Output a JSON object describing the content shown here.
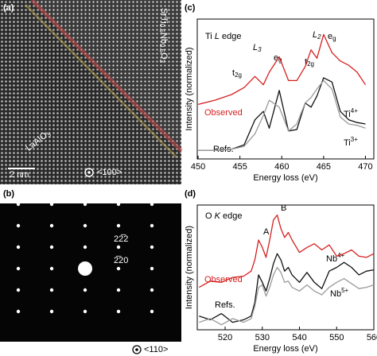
{
  "panels": {
    "a": {
      "label": "(a)",
      "film": {
        "p1": "SrTi",
        "s1": "0.5",
        "p2": "Nb",
        "s2": "0.5",
        "p3": "O",
        "s3": "3"
      },
      "substrate": {
        "p1": "LaAlO",
        "s1": "3"
      },
      "scale_bar": "2 nm",
      "zone_axis": "<100>"
    },
    "b": {
      "label": "(b)",
      "spot_1": "22̅2",
      "spot_2": "2̅20",
      "zone_axis": "<110>"
    }
  },
  "chart_data": [
    {
      "type": "line",
      "label": "(c)",
      "xlabel": "Energy loss (eV)",
      "ylabel": "Intensity (normalized)",
      "xlim": [
        449.9,
        471
      ],
      "xticks": [
        450,
        455,
        460,
        465,
        470
      ],
      "ylim": [
        0,
        1
      ],
      "x": [
        450,
        452,
        454,
        455.5,
        456.8,
        457.8,
        458.5,
        459.7,
        460.8,
        461.8,
        462.8,
        463.5,
        464.2,
        465,
        466,
        467,
        468,
        469,
        470
      ],
      "series": [
        {
          "color": "#d62020",
          "values": [
            0.39,
            0.42,
            0.46,
            0.51,
            0.59,
            0.53,
            0.62,
            0.73,
            0.56,
            0.56,
            0.66,
            0.78,
            0.72,
            0.89,
            0.76,
            0.7,
            0.67,
            0.62,
            0.53
          ]
        },
        {
          "color": "#111111",
          "values": [
            0.06,
            0.06,
            0.07,
            0.1,
            0.28,
            0.34,
            0.22,
            0.49,
            0.2,
            0.21,
            0.4,
            0.37,
            0.45,
            0.58,
            0.55,
            0.34,
            0.28,
            0.26,
            0.25
          ]
        },
        {
          "color": "#9a9a9a",
          "values": [
            0.06,
            0.06,
            0.07,
            0.09,
            0.18,
            0.31,
            0.42,
            0.37,
            0.2,
            0.25,
            0.4,
            0.44,
            0.5,
            0.56,
            0.5,
            0.3,
            0.25,
            0.24,
            0.22
          ]
        }
      ],
      "annotations": {
        "edge": {
          "p1": "Ti ",
          "p2": "L",
          "p3": " edge"
        },
        "t2g_1": {
          "p1": "t",
          "s1": "2g"
        },
        "l3": {
          "p1": "L",
          "s1": "3"
        },
        "eg_1": {
          "p1": "e",
          "s1": "g"
        },
        "t2g_2": {
          "p1": "t",
          "s1": "2g"
        },
        "l2": {
          "p1": "L",
          "s1": "2"
        },
        "eg_2": {
          "p1": "e",
          "s1": "g"
        },
        "observed": "Observed",
        "refs": "Refs.",
        "ti4": {
          "p1": "Ti",
          "s1": "4+"
        },
        "ti3": {
          "p1": "Ti",
          "s1": "3+"
        }
      }
    },
    {
      "type": "line",
      "label": "(d)",
      "xlabel": "Energy loss (eV)",
      "ylabel": "Intensity (normalized)",
      "xlim": [
        512.5,
        560
      ],
      "xticks": [
        520,
        530,
        540,
        550,
        560
      ],
      "ylim": [
        0,
        1
      ],
      "x": [
        513,
        516,
        519,
        522,
        525,
        527,
        528,
        529,
        530,
        531,
        532,
        533,
        534,
        535,
        536,
        537,
        538,
        540,
        542,
        544,
        546,
        548,
        550,
        552,
        554,
        556,
        558,
        560
      ],
      "series": [
        {
          "color": "#d62020",
          "values": [
            0.34,
            0.39,
            0.38,
            0.42,
            0.43,
            0.47,
            0.56,
            0.72,
            0.66,
            0.58,
            0.72,
            0.88,
            0.92,
            0.81,
            0.74,
            0.78,
            0.72,
            0.62,
            0.66,
            0.69,
            0.64,
            0.68,
            0.59,
            0.61,
            0.64,
            0.59,
            0.58,
            0.61
          ]
        },
        {
          "color": "#111111",
          "values": [
            0.11,
            0.08,
            0.13,
            0.06,
            0.08,
            0.11,
            0.22,
            0.44,
            0.38,
            0.31,
            0.41,
            0.53,
            0.61,
            0.56,
            0.47,
            0.5,
            0.44,
            0.38,
            0.46,
            0.38,
            0.33,
            0.47,
            0.5,
            0.54,
            0.5,
            0.44,
            0.47,
            0.48
          ]
        },
        {
          "color": "#9a9a9a",
          "values": [
            0.06,
            0.09,
            0.04,
            0.09,
            0.06,
            0.09,
            0.19,
            0.34,
            0.36,
            0.27,
            0.34,
            0.44,
            0.5,
            0.46,
            0.38,
            0.39,
            0.34,
            0.31,
            0.36,
            0.31,
            0.28,
            0.34,
            0.38,
            0.41,
            0.37,
            0.33,
            0.34,
            0.36
          ]
        }
      ],
      "annotations": {
        "edge": {
          "p1": "O ",
          "p2": "K",
          "p3": " edge"
        },
        "a": "A",
        "b": "B",
        "observed": "Observed",
        "refs": "Refs.",
        "nb4": {
          "p1": "Nb",
          "s1": "4+"
        },
        "nb5": {
          "p1": "Nb",
          "s1": "5+"
        }
      }
    }
  ]
}
